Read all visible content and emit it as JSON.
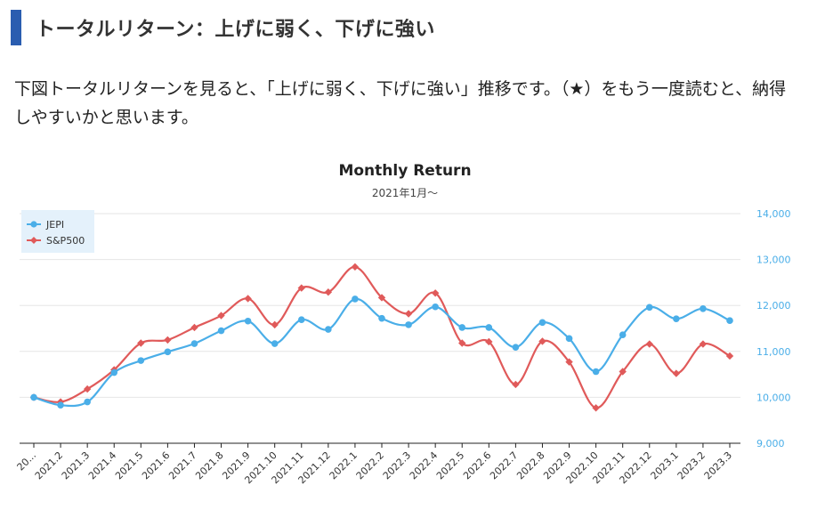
{
  "heading": {
    "accent_color": "#2a5db0",
    "text": "トータルリターン：上げに弱く、下げに強い"
  },
  "body_text": "下図トータルリターンを見ると、「上げに弱く、下げに強い」推移です。（★）をもう一度読むと、納得しやすいかと思います。",
  "chart_data": {
    "type": "line",
    "title": "Monthly Return",
    "subtitle": "2021年1月〜",
    "xlabel": "",
    "ylabel": "",
    "categories": [
      "20...",
      "2021.2",
      "2021.3",
      "2021.4",
      "2021.5",
      "2021.6",
      "2021.7",
      "2021.8",
      "2021.9",
      "2021.10",
      "2021.11",
      "2021.12",
      "2022.1",
      "2022.2",
      "2022.3",
      "2022.4",
      "2022.5",
      "2022.6",
      "2022.7",
      "2022.8",
      "2022.9",
      "2022.10",
      "2022.11",
      "2022.12",
      "2023.1",
      "2023.2",
      "2023.3"
    ],
    "ylim": [
      9000,
      14000
    ],
    "yticks": [
      "9,000",
      "10,000",
      "11,000",
      "12,000",
      "13,000",
      "14,000"
    ],
    "grid": true,
    "smooth": true,
    "legend_position": "top-left",
    "series": [
      {
        "name": "JEPI",
        "color": "#4aaee8",
        "marker": "circle",
        "values": [
          10000,
          9830,
          9900,
          10540,
          10800,
          10990,
          11170,
          11450,
          11660,
          11170,
          11690,
          11480,
          12140,
          11720,
          11580,
          11970,
          11520,
          11520,
          11090,
          11630,
          11280,
          10560,
          11360,
          11960,
          11710,
          11930,
          11670
        ]
      },
      {
        "name": "S&P500",
        "color": "#e05a5a",
        "marker": "diamond",
        "values": [
          10000,
          9900,
          10180,
          10600,
          11180,
          11250,
          11520,
          11780,
          12150,
          11580,
          12380,
          12290,
          12840,
          12170,
          11820,
          12270,
          11180,
          11210,
          10280,
          11220,
          10770,
          9770,
          10560,
          11160,
          10520,
          11160,
          10900
        ]
      }
    ]
  }
}
